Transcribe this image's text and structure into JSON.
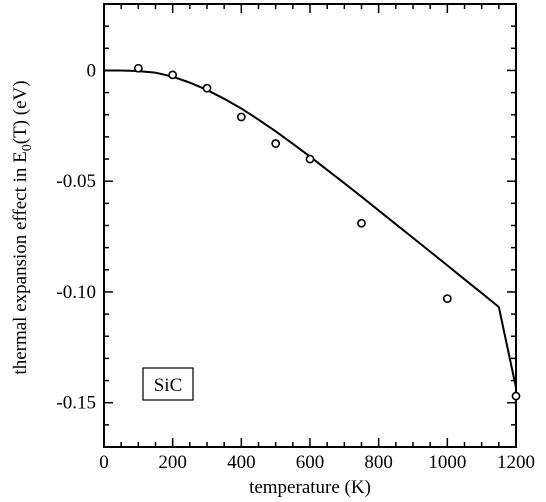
{
  "chart_data": {
    "type": "scatter",
    "xlabel": "temperature (K)",
    "ylabel": {
      "prefix": "thermal expansion effect in E",
      "subscript": "0",
      "suffix": "(T) (eV)"
    },
    "xlim": [
      0,
      1200
    ],
    "ylim": [
      -0.17,
      0.03
    ],
    "x_ticks": [
      {
        "value": 0,
        "label": "0"
      },
      {
        "value": 200,
        "label": "200"
      },
      {
        "value": 400,
        "label": "400"
      },
      {
        "value": 600,
        "label": "600"
      },
      {
        "value": 800,
        "label": "800"
      },
      {
        "value": 1000,
        "label": "1000"
      },
      {
        "value": 1200,
        "label": "1200"
      }
    ],
    "x_minor_step": 50,
    "y_ticks": [
      {
        "value": 0,
        "label": "0"
      },
      {
        "value": -0.05,
        "label": "-0.05"
      },
      {
        "value": -0.1,
        "label": "-0.10"
      },
      {
        "value": -0.15,
        "label": "-0.15"
      }
    ],
    "y_minor_step": 0.01,
    "grid": false,
    "annotation": "SiC",
    "series": [
      {
        "kind": "points",
        "marker": "open-circle",
        "x": [
          100,
          200,
          300,
          400,
          500,
          600,
          750,
          1000,
          1200
        ],
        "y": [
          0.001,
          -0.002,
          -0.008,
          -0.021,
          -0.033,
          -0.04,
          -0.069,
          -0.103,
          -0.147
        ]
      },
      {
        "kind": "line",
        "x": [
          0,
          50,
          100,
          150,
          200,
          250,
          300,
          350,
          400,
          450,
          500,
          550,
          600,
          650,
          700,
          750,
          800,
          850,
          900,
          950,
          1000,
          1050,
          1100,
          1150,
          1200
        ],
        "y": [
          0.0,
          0.0,
          -0.0003,
          -0.001,
          -0.0028,
          -0.0055,
          -0.0088,
          -0.0128,
          -0.0172,
          -0.0222,
          -0.0275,
          -0.0331,
          -0.0389,
          -0.0449,
          -0.0509,
          -0.057,
          -0.0632,
          -0.0694,
          -0.0756,
          -0.0818,
          -0.088,
          -0.0943,
          -0.1005,
          -0.1068,
          -0.1432
        ]
      }
    ]
  }
}
